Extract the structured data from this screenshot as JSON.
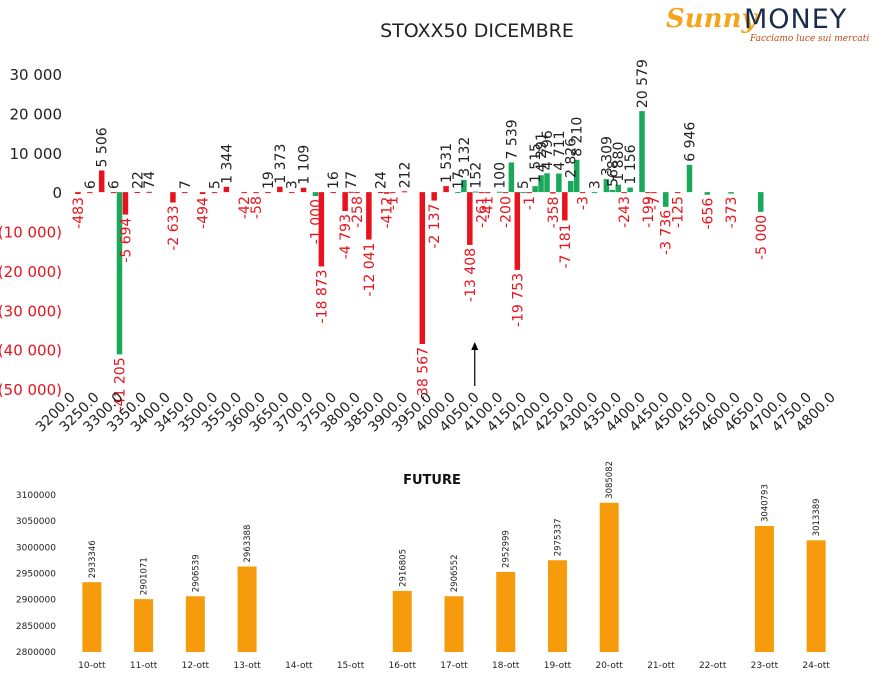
{
  "logo": {
    "brand_a": "Sunny",
    "brand_b": "MONEY",
    "tagline": "Facciamo luce sui mercati"
  },
  "colors": {
    "positive": "#1aa85a",
    "negative": "#e8131c",
    "negative_text": "#e8131c",
    "future_bar": "#f59b0c"
  },
  "chart_data": [
    {
      "type": "bar",
      "title": "STOXX50 DICEMBRE",
      "ylim": [
        -50000,
        30000
      ],
      "yticks": [
        {
          "v": 30000,
          "label": "30 000"
        },
        {
          "v": 20000,
          "label": "20 000"
        },
        {
          "v": 10000,
          "label": "10 000"
        },
        {
          "v": 0,
          "label": "0"
        },
        {
          "v": -10000,
          "label": "(10 000)"
        },
        {
          "v": -20000,
          "label": "(20 000)"
        },
        {
          "v": -30000,
          "label": "(30 000)"
        },
        {
          "v": -40000,
          "label": "(40 000)"
        },
        {
          "v": -50000,
          "label": "(50 000)"
        }
      ],
      "xticks": [
        "3200.0",
        "3250.0",
        "3300.0",
        "3350.0",
        "3400.0",
        "3450.0",
        "3500.0",
        "3550.0",
        "3600.0",
        "3650.0",
        "3700.0",
        "3750.0",
        "3800.0",
        "3850.0",
        "3900.0",
        "3950.0",
        "4000.0",
        "4050.0",
        "4100.0",
        "4150.0",
        "4200.0",
        "4250.0",
        "4300.0",
        "4350.0",
        "4400.0",
        "4450.0",
        "4500.0",
        "4550.0",
        "4600.0",
        "4650.0",
        "4700.0",
        "4750.0",
        "4800.0"
      ],
      "xlim": [
        3200,
        4800
      ],
      "annotation_arrow_x": 4050,
      "bars": [
        {
          "x": 3212.5,
          "v": -483,
          "label": "-483"
        },
        {
          "x": 3237.5,
          "v": 6,
          "label": "6"
        },
        {
          "x": 3262.5,
          "v": 5506,
          "label": "5 506"
        },
        {
          "x": 3287.5,
          "v": 6,
          "label": "6"
        },
        {
          "x": 3300,
          "v": -41205,
          "label": "-41 205"
        },
        {
          "x": 3312.5,
          "v": -5694,
          "label": "-5 694"
        },
        {
          "x": 3337.5,
          "v": 22,
          "label": "22"
        },
        {
          "x": 3362.5,
          "v": 74,
          "label": "74"
        },
        {
          "x": 3412.5,
          "v": -2633,
          "label": "-2 633"
        },
        {
          "x": 3437.5,
          "v": 7,
          "label": "7"
        },
        {
          "x": 3475,
          "v": -494,
          "label": "-494"
        },
        {
          "x": 3500,
          "v": 5,
          "label": "5"
        },
        {
          "x": 3525,
          "v": 1344,
          "label": "1 344"
        },
        {
          "x": 3562.5,
          "v": -42,
          "label": "-42"
        },
        {
          "x": 3587.5,
          "v": -58,
          "label": "-58"
        },
        {
          "x": 3612.5,
          "v": 19,
          "label": "19"
        },
        {
          "x": 3637.5,
          "v": 1373,
          "label": "1 373"
        },
        {
          "x": 3662.5,
          "v": 3,
          "label": "3"
        },
        {
          "x": 3687.5,
          "v": 1109,
          "label": "1 109"
        },
        {
          "x": 3712.5,
          "v": -1000,
          "label": "-1 000"
        },
        {
          "x": 3725,
          "v": -18873,
          "label": "-18 873"
        },
        {
          "x": 3750,
          "v": 16,
          "label": "16"
        },
        {
          "x": 3775,
          "v": -4793,
          "label": "-4 793"
        },
        {
          "x": 3787.5,
          "v": 77,
          "label": "77"
        },
        {
          "x": 3800,
          "v": -258,
          "label": "-258"
        },
        {
          "x": 3825,
          "v": -12041,
          "label": "-12 041"
        },
        {
          "x": 3850,
          "v": 24,
          "label": "24"
        },
        {
          "x": 3862.5,
          "v": -412,
          "label": "-412"
        },
        {
          "x": 3875,
          "v": -1,
          "label": "-1"
        },
        {
          "x": 3900,
          "v": 212,
          "label": "212"
        },
        {
          "x": 3937.5,
          "v": -38567,
          "label": "-38 567"
        },
        {
          "x": 3962.5,
          "v": -2137,
          "label": "-2 137"
        },
        {
          "x": 3987.5,
          "v": 1531,
          "label": "1 531"
        },
        {
          "x": 4012.5,
          "v": 17,
          "label": "17"
        },
        {
          "x": 4025,
          "v": 3132,
          "label": "3 132"
        },
        {
          "x": 4037.5,
          "v": -13408,
          "label": "-13 408"
        },
        {
          "x": 4050,
          "v": 152,
          "label": "152"
        },
        {
          "x": 4062.5,
          "v": -261,
          "label": "-261"
        },
        {
          "x": 4075,
          "v": -41,
          "label": "-41"
        },
        {
          "x": 4100,
          "v": 100,
          "label": "100"
        },
        {
          "x": 4112.5,
          "v": -200,
          "label": "-200"
        },
        {
          "x": 4125,
          "v": 7539,
          "label": "7 539"
        },
        {
          "x": 4137.5,
          "v": -19753,
          "label": "-19 753"
        },
        {
          "x": 4150,
          "v": 5,
          "label": "5"
        },
        {
          "x": 4162.5,
          "v": -1,
          "label": "-1"
        },
        {
          "x": 4175,
          "v": 1515,
          "label": "1 515"
        },
        {
          "x": 4187.5,
          "v": 4291,
          "label": "4 291"
        },
        {
          "x": 4200,
          "v": 4796,
          "label": "4 796"
        },
        {
          "x": 4212.5,
          "v": -358,
          "label": "-358"
        },
        {
          "x": 4225,
          "v": 4711,
          "label": "4 711"
        },
        {
          "x": 4237.5,
          "v": -7181,
          "label": "-7 181"
        },
        {
          "x": 4250,
          "v": 2826,
          "label": "2 826"
        },
        {
          "x": 4262.5,
          "v": 8210,
          "label": "8 210"
        },
        {
          "x": 4275,
          "v": -3,
          "label": "-3"
        },
        {
          "x": 4300,
          "v": 3,
          "label": "3"
        },
        {
          "x": 4325,
          "v": 3309,
          "label": "3 309"
        },
        {
          "x": 4337.5,
          "v": 568,
          "label": "568"
        },
        {
          "x": 4350,
          "v": 1880,
          "label": "1 880"
        },
        {
          "x": 4362.5,
          "v": -243,
          "label": "-243"
        },
        {
          "x": 4375,
          "v": 1156,
          "label": "1 156"
        },
        {
          "x": 4400,
          "v": 20579,
          "label": "20 579"
        },
        {
          "x": 4412.5,
          "v": -199,
          "label": "-199"
        },
        {
          "x": 4425,
          "v": -7,
          "label": "-7"
        },
        {
          "x": 4450,
          "v": -3736,
          "label": "-3 736"
        },
        {
          "x": 4475,
          "v": -125,
          "label": "-125"
        },
        {
          "x": 4500,
          "v": 6946,
          "label": "6 946"
        },
        {
          "x": 4537.5,
          "v": -656,
          "label": "-656"
        },
        {
          "x": 4587.5,
          "v": -373,
          "label": "-373"
        },
        {
          "x": 4650,
          "v": -5000,
          "label": "-5 000"
        }
      ]
    },
    {
      "type": "bar",
      "title": "FUTURE",
      "ylim": [
        2800000,
        3100000
      ],
      "yticks": [
        {
          "v": 3100000,
          "label": "3100000"
        },
        {
          "v": 3050000,
          "label": "3050000"
        },
        {
          "v": 3000000,
          "label": "3000000"
        },
        {
          "v": 2950000,
          "label": "2950000"
        },
        {
          "v": 2900000,
          "label": "2900000"
        },
        {
          "v": 2850000,
          "label": "2850000"
        },
        {
          "v": 2800000,
          "label": "2800000"
        }
      ],
      "categories": [
        "10-ott",
        "11-ott",
        "12-ott",
        "13-ott",
        "14-ott",
        "15-ott",
        "16-ott",
        "17-ott",
        "18-ott",
        "19-ott",
        "20-ott",
        "21-ott",
        "22-ott",
        "23-ott",
        "24-ott"
      ],
      "values": [
        2933346,
        2901071,
        2906539,
        2963388,
        null,
        null,
        2916805,
        2906552,
        2952999,
        2975337,
        3085082,
        null,
        null,
        3040793,
        3013389
      ],
      "value_labels": [
        "2933346",
        "2901071",
        "2906539",
        "2963388",
        "",
        "",
        "2916805",
        "2906552",
        "2952999",
        "2975337",
        "3085082",
        "",
        "",
        "3040793",
        "3013389"
      ]
    }
  ]
}
